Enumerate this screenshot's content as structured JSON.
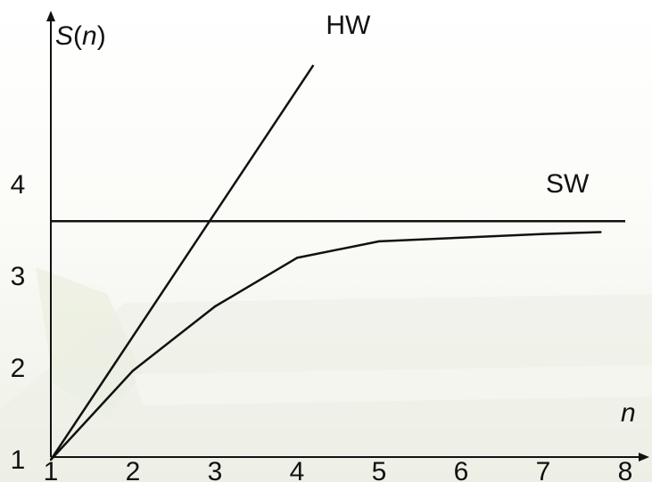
{
  "chart_data": {
    "type": "line",
    "xlabel": "n",
    "ylabel": "S(n)",
    "xlim": [
      1,
      8
    ],
    "ylim": [
      1,
      5
    ],
    "x_ticks": [
      "1",
      "2",
      "3",
      "4",
      "5",
      "6",
      "7",
      "8"
    ],
    "y_ticks": [
      "1",
      "2",
      "3",
      "4"
    ],
    "grid": false,
    "series": [
      {
        "name": "HW",
        "x": [
          1,
          4.2
        ],
        "y": [
          1,
          5.3
        ]
      },
      {
        "name": "SW",
        "x": [
          1,
          8
        ],
        "y": [
          3.6,
          3.6
        ]
      },
      {
        "name": "",
        "x": [
          1,
          2,
          3,
          4,
          5,
          6,
          7,
          7.7
        ],
        "y": [
          1,
          1.97,
          2.67,
          3.2,
          3.38,
          3.42,
          3.46,
          3.48
        ]
      }
    ]
  },
  "colors": {
    "line": "#111111",
    "background": "#ffffff"
  }
}
